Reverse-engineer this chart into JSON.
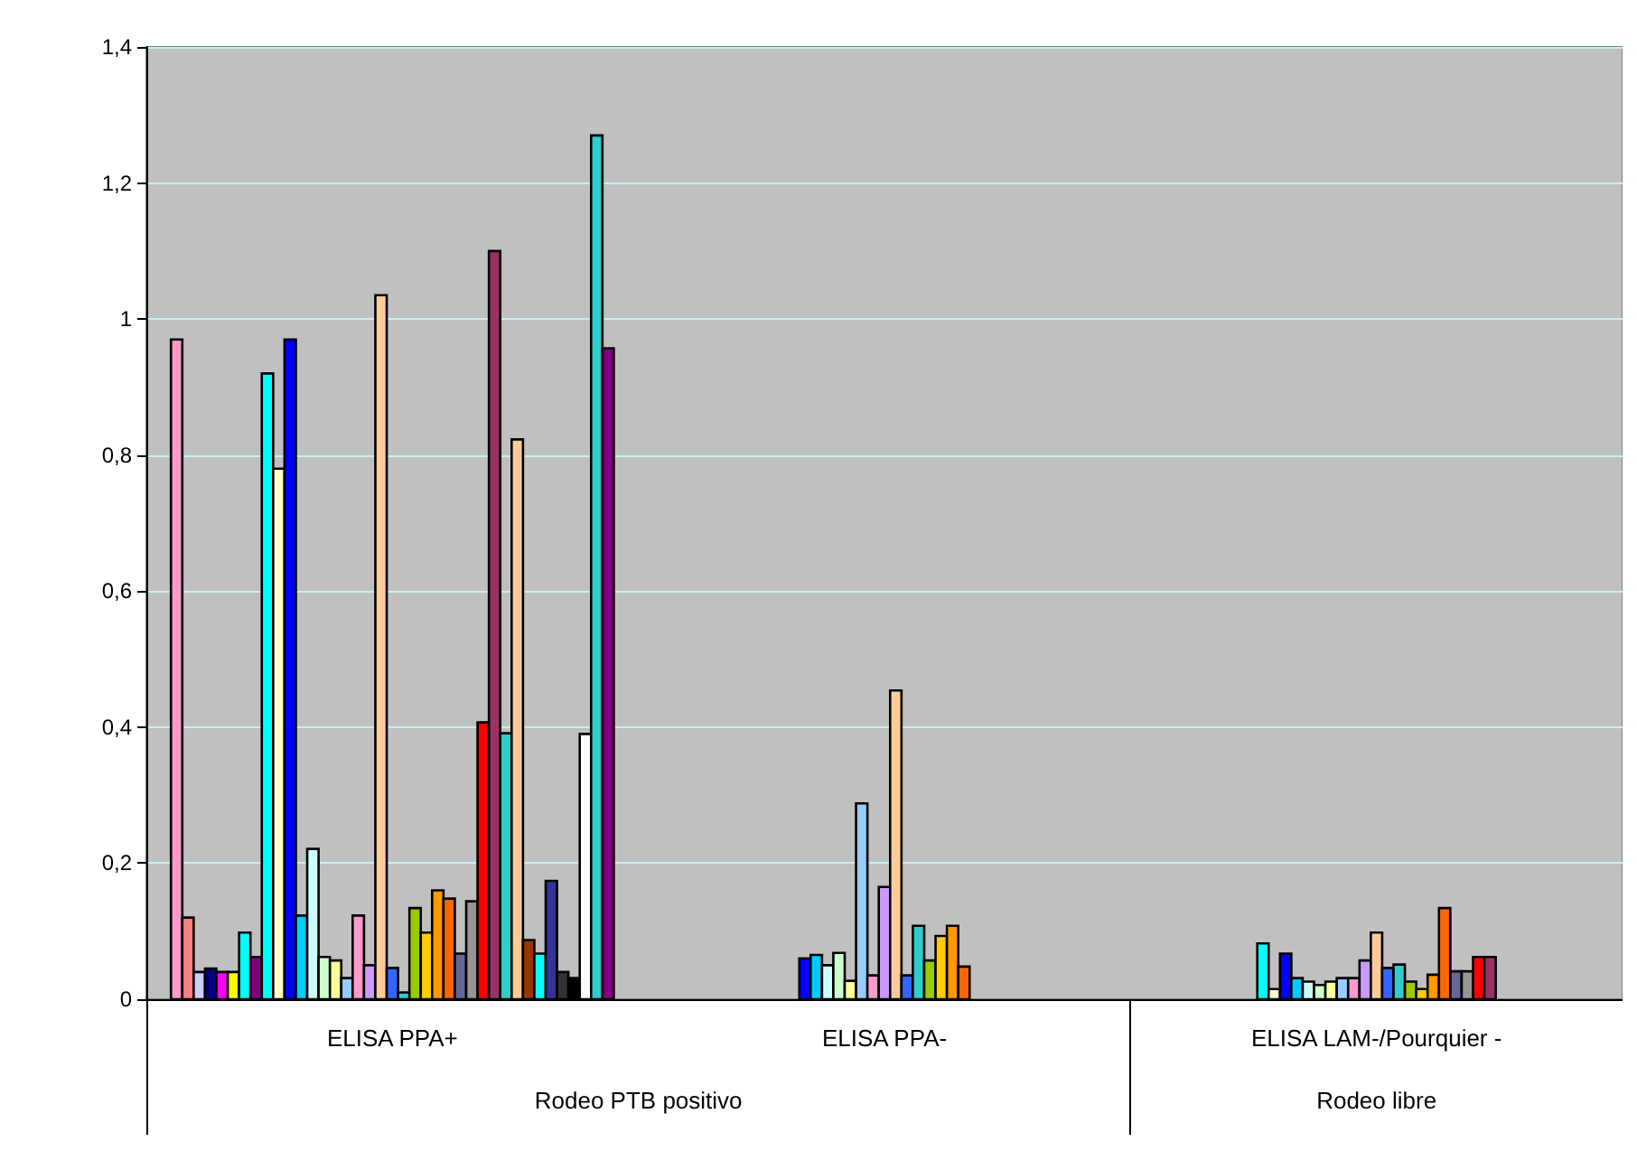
{
  "chart_data": {
    "type": "bar",
    "categories": [
      "ELISA PPA+",
      "ELISA PPA-",
      "ELISA LAM-/Pourquier -"
    ],
    "ylim": [
      0,
      1.4
    ],
    "yticks": [
      0,
      {
        "value": 0.2,
        "label": "0,2"
      },
      {
        "value": 0.4,
        "label": "0,4"
      },
      {
        "value": 0.6,
        "label": "0,6"
      },
      {
        "value": 0.8,
        "label": "0,8"
      },
      {
        "value": 1,
        "label": "1"
      },
      {
        "value": 1.2,
        "label": "1,2"
      },
      {
        "value": 1.4,
        "label": "1,4"
      }
    ],
    "grid": "y",
    "annotations": [
      "Rodeo PTB positivo",
      "Rodeo libre"
    ],
    "series": [
      {
        "color": "#ff99cc",
        "values": [
          0.97,
          null,
          null
        ]
      },
      {
        "color": "#ff8080",
        "values": [
          0.12,
          null,
          null
        ]
      },
      {
        "color": "#ccccff",
        "values": [
          0.04,
          null,
          null
        ]
      },
      {
        "color": "#000080",
        "values": [
          0.045,
          null,
          null
        ]
      },
      {
        "color": "#ff00ff",
        "values": [
          0.04,
          null,
          null
        ]
      },
      {
        "color": "#ffff00",
        "values": [
          0.04,
          null,
          null
        ]
      },
      {
        "color": "#00ffff",
        "values": [
          0.098,
          null,
          null
        ]
      },
      {
        "color": "#800080",
        "values": [
          0.062,
          null,
          null
        ]
      },
      {
        "color": "#00ffff",
        "values": [
          0.92,
          null,
          null
        ]
      },
      {
        "color": "#ffffcc",
        "values": [
          0.78,
          null,
          null
        ]
      },
      {
        "color": "#0000ff",
        "values": [
          0.97,
          null,
          null
        ]
      },
      {
        "color": "#00ccff",
        "values": [
          0.123,
          null,
          null
        ]
      },
      {
        "color": "#ccffff",
        "values": [
          0.221,
          null,
          null
        ]
      },
      {
        "color": "#ccffcc",
        "values": [
          0.062,
          null,
          null
        ]
      },
      {
        "color": "#ffff99",
        "values": [
          0.057,
          null,
          null
        ]
      },
      {
        "color": "#99ccff",
        "values": [
          0.031,
          null,
          null
        ]
      },
      {
        "color": "#ff99cc",
        "values": [
          0.123,
          null,
          null
        ]
      },
      {
        "color": "#cc99ff",
        "values": [
          0.05,
          null,
          null
        ]
      },
      {
        "color": "#ffcc99",
        "values": [
          1.035,
          null,
          null
        ]
      },
      {
        "color": "#3366ff",
        "values": [
          0.046,
          null,
          null
        ]
      },
      {
        "color": "#33cccc",
        "values": [
          0.01,
          null,
          null
        ]
      },
      {
        "color": "#99cc00",
        "values": [
          0.134,
          null,
          null
        ]
      },
      {
        "color": "#ffcc00",
        "values": [
          0.098,
          null,
          null
        ]
      },
      {
        "color": "#ff9900",
        "values": [
          0.16,
          null,
          null
        ]
      },
      {
        "color": "#ff6600",
        "values": [
          0.148,
          null,
          null
        ]
      },
      {
        "color": "#666699",
        "values": [
          0.067,
          null,
          null
        ]
      },
      {
        "color": "#969696",
        "values": [
          0.144,
          null,
          null
        ]
      },
      {
        "color": "#ff0000",
        "values": [
          0.407,
          null,
          null
        ]
      },
      {
        "color": "#993366",
        "values": [
          1.1,
          null,
          null
        ]
      },
      {
        "color": "#33cccc",
        "values": [
          0.391,
          null,
          null
        ]
      },
      {
        "color": "#ffcc99",
        "values": [
          0.823,
          null,
          null
        ]
      },
      {
        "color": "#993300",
        "values": [
          0.087,
          null,
          null
        ]
      },
      {
        "color": "#00ffff",
        "values": [
          0.067,
          null,
          null
        ]
      },
      {
        "color": "#333399",
        "values": [
          0.174,
          null,
          null
        ]
      },
      {
        "color": "#333333",
        "values": [
          0.04,
          null,
          null
        ]
      },
      {
        "color": "#000000",
        "values": [
          0.031,
          null,
          null
        ]
      },
      {
        "color": "#ffffff",
        "values": [
          0.39,
          null,
          null
        ]
      },
      {
        "color": "#33cccc",
        "values": [
          1.27,
          null,
          null
        ]
      },
      {
        "color": "#800080",
        "values": [
          0.957,
          null,
          null
        ]
      },
      {
        "color": "#0000ff",
        "values": [
          null,
          0.06,
          null
        ]
      },
      {
        "color": "#00ccff",
        "values": [
          null,
          0.065,
          null
        ]
      },
      {
        "color": "#ccffff",
        "values": [
          null,
          0.05,
          null
        ]
      },
      {
        "color": "#ccffcc",
        "values": [
          null,
          0.068,
          null
        ]
      },
      {
        "color": "#ffff99",
        "values": [
          null,
          0.027,
          null
        ]
      },
      {
        "color": "#99ccff",
        "values": [
          null,
          0.288,
          null
        ]
      },
      {
        "color": "#ff99cc",
        "values": [
          null,
          0.035,
          null
        ]
      },
      {
        "color": "#cc99ff",
        "values": [
          null,
          0.165,
          null
        ]
      },
      {
        "color": "#ffcc99",
        "values": [
          null,
          0.454,
          null
        ]
      },
      {
        "color": "#3366ff",
        "values": [
          null,
          0.035,
          null
        ]
      },
      {
        "color": "#33cccc",
        "values": [
          null,
          0.108,
          null
        ]
      },
      {
        "color": "#99cc00",
        "values": [
          null,
          0.057,
          null
        ]
      },
      {
        "color": "#ffcc00",
        "values": [
          null,
          0.093,
          null
        ]
      },
      {
        "color": "#ff9900",
        "values": [
          null,
          0.108,
          null
        ]
      },
      {
        "color": "#ff6600",
        "values": [
          null,
          0.048,
          null
        ]
      },
      {
        "color": "#00ffff",
        "values": [
          null,
          null,
          0.082
        ]
      },
      {
        "color": "#ffffcc",
        "values": [
          null,
          null,
          0.015
        ]
      },
      {
        "color": "#0000ff",
        "values": [
          null,
          null,
          0.067
        ]
      },
      {
        "color": "#00ccff",
        "values": [
          null,
          null,
          0.031
        ]
      },
      {
        "color": "#ccffff",
        "values": [
          null,
          null,
          0.026
        ]
      },
      {
        "color": "#ccffcc",
        "values": [
          null,
          null,
          0.021
        ]
      },
      {
        "color": "#ffff99",
        "values": [
          null,
          null,
          0.026
        ]
      },
      {
        "color": "#99ccff",
        "values": [
          null,
          null,
          0.031
        ]
      },
      {
        "color": "#ff99cc",
        "values": [
          null,
          null,
          0.031
        ]
      },
      {
        "color": "#cc99ff",
        "values": [
          null,
          null,
          0.057
        ]
      },
      {
        "color": "#ffcc99",
        "values": [
          null,
          null,
          0.098
        ]
      },
      {
        "color": "#3366ff",
        "values": [
          null,
          null,
          0.046
        ]
      },
      {
        "color": "#33cccc",
        "values": [
          null,
          null,
          0.051
        ]
      },
      {
        "color": "#99cc00",
        "values": [
          null,
          null,
          0.026
        ]
      },
      {
        "color": "#ffcc00",
        "values": [
          null,
          null,
          0.015
        ]
      },
      {
        "color": "#ff9900",
        "values": [
          null,
          null,
          0.036
        ]
      },
      {
        "color": "#ff6600",
        "values": [
          null,
          null,
          0.134
        ]
      },
      {
        "color": "#666699",
        "values": [
          null,
          null,
          0.041
        ]
      },
      {
        "color": "#969696",
        "values": [
          null,
          null,
          0.041
        ]
      },
      {
        "color": "#ff0000",
        "values": [
          null,
          null,
          0.062
        ]
      },
      {
        "color": "#993366",
        "values": [
          null,
          null,
          0.062
        ]
      }
    ]
  }
}
